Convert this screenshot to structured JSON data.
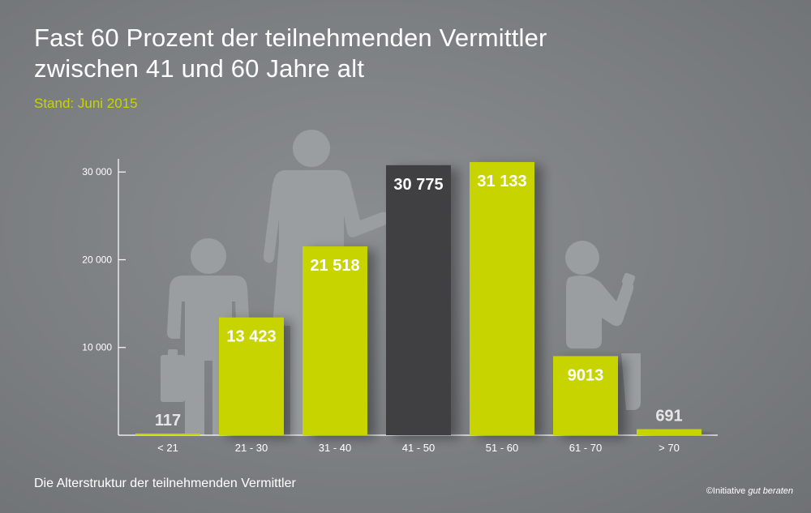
{
  "header": {
    "title_line1": "Fast 60 Prozent der teilnehmenden Vermittler",
    "title_line2": "zwischen 41 und 60 Jahre alt",
    "subtitle": "Stand: Juni 2015"
  },
  "footer": {
    "caption": "Die Alterstruktur der teilnehmenden Vermittler",
    "copyright_prefix": "©Initiative ",
    "copyright_brand": "gut beraten"
  },
  "colors": {
    "background": "#7b7e81",
    "bar_default": "#c8d400",
    "bar_highlight": "#3f4042",
    "value_light": "#ffffff",
    "value_dark_on_bg": "#e6e6e6",
    "silhouette": "#9a9ea1",
    "axis": "#ffffff"
  },
  "icons": [
    "briefcase-man-silhouette",
    "woman-silhouette",
    "seated-elderly-silhouette"
  ],
  "chart_data": {
    "type": "bar",
    "categories": [
      "< 21",
      "21 - 30",
      "31 - 40",
      "41 - 50",
      "51 - 60",
      "61 - 70",
      "> 70"
    ],
    "values": [
      117,
      13423,
      21518,
      30775,
      31133,
      9013,
      691
    ],
    "value_labels": [
      "117",
      "13 423",
      "21 518",
      "30 775",
      "31 133",
      "9013",
      "691"
    ],
    "highlight_index": 3,
    "yticks": [
      10000,
      20000,
      30000
    ],
    "ytick_labels": [
      "10 000",
      "20 000",
      "30 000"
    ],
    "ylim": [
      0,
      31500
    ],
    "grid": false,
    "xlabel": "",
    "ylabel": ""
  }
}
